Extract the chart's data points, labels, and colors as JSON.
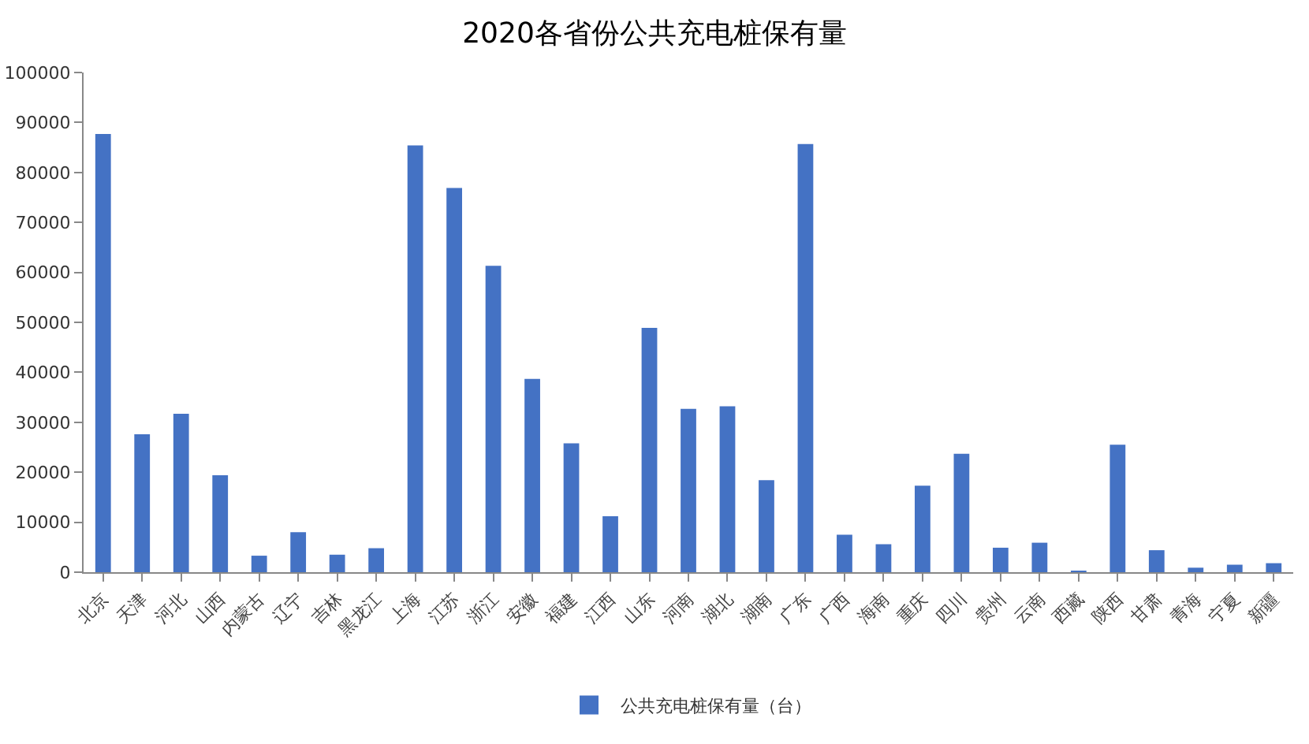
{
  "chart_data": {
    "type": "bar",
    "title": "2020各省份公共充电桩保有量",
    "categories": [
      "北京",
      "天津",
      "河北",
      "山西",
      "内蒙古",
      "辽宁",
      "吉林",
      "黑龙江",
      "上海",
      "江苏",
      "浙江",
      "安徽",
      "福建",
      "江西",
      "山东",
      "河南",
      "湖北",
      "湖南",
      "广东",
      "广西",
      "海南",
      "重庆",
      "四川",
      "贵州",
      "云南",
      "西藏",
      "陕西",
      "甘肃",
      "青海",
      "宁夏",
      "新疆"
    ],
    "series": [
      {
        "name": "公共充电桩保有量（台）",
        "color": "#4472c4",
        "values": [
          87700,
          27600,
          31700,
          19400,
          3300,
          8000,
          3500,
          4800,
          85400,
          76900,
          61300,
          38700,
          25800,
          11200,
          48900,
          32700,
          33200,
          18400,
          85700,
          7500,
          5600,
          17300,
          23700,
          4900,
          5900,
          300,
          25500,
          4400,
          900,
          1500,
          1800
        ]
      }
    ],
    "ylim": [
      0,
      100000
    ],
    "yticks": [
      0,
      10000,
      20000,
      30000,
      40000,
      50000,
      60000,
      70000,
      80000,
      90000,
      100000
    ],
    "grid": false,
    "legend": "bottom"
  }
}
